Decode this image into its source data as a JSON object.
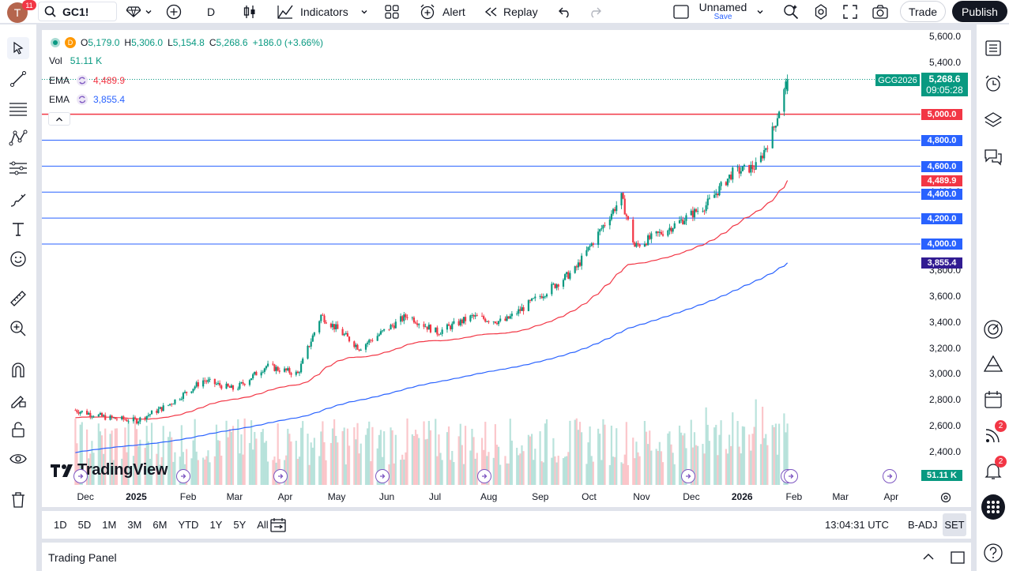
{
  "header": {
    "notification_count": "11",
    "avatar_letter": "T",
    "symbol": "GC1!",
    "interval": "D",
    "indicators_label": "Indicators",
    "alert_label": "Alert",
    "replay_label": "Replay",
    "layout_name": "Unnamed",
    "layout_status": "Save",
    "trade_label": "Trade",
    "publish_label": "Publish"
  },
  "legend": {
    "open_label": "O",
    "open": "5,179.0",
    "high_label": "H",
    "high": "5,306.0",
    "low_label": "L",
    "low": "5,154.8",
    "close_label": "C",
    "close": "5,268.6",
    "change": "+186.0 (+3.66%)",
    "vol_label": "Vol",
    "vol": "51.11 K",
    "ema1_label": "EMA",
    "ema1_value": "4,489.9",
    "ema2_label": "EMA",
    "ema2_value": "3,855.4",
    "badge_d": "D"
  },
  "price_axis": [
    "5,600.0",
    "5,400.0",
    "5,200.0",
    "5,000.0",
    "4,800.0",
    "4,600.0",
    "4,400.0",
    "4,200.0",
    "4,000.0",
    "3,800.0",
    "3,600.0",
    "3,400.0",
    "3,200.0",
    "3,000.0",
    "2,800.0",
    "2,600.0",
    "2,400.0"
  ],
  "price_labels": {
    "symbol_tag": "GCG2026",
    "last_price": "5,268.6",
    "countdown": "09:05:28",
    "h5000": "5,000.0",
    "h4800": "4,800.0",
    "h4600": "4,600.0",
    "ema_fast": "4,489.9",
    "h4400": "4,400.0",
    "h4200": "4,200.0",
    "h4000": "4,000.0",
    "ema_slow": "3,855.4",
    "volume": "51.11 K"
  },
  "time_axis": [
    "Dec",
    "2025",
    "Feb",
    "Mar",
    "Apr",
    "May",
    "Jun",
    "Jul",
    "Aug",
    "Sep",
    "Oct",
    "Nov",
    "Dec",
    "2026",
    "Feb",
    "Mar",
    "Apr"
  ],
  "watermark": "TradingView",
  "bottom": {
    "ranges": [
      "1D",
      "5D",
      "1M",
      "3M",
      "6M",
      "YTD",
      "1Y",
      "5Y",
      "All"
    ],
    "clock": "13:04:31 UTC",
    "adj": "B-ADJ",
    "session": "SET"
  },
  "panel_title": "Trading Panel",
  "right_badges": {
    "ideas": "2",
    "alerts": "2"
  },
  "colors": {
    "up": "#089981",
    "down": "#f23645",
    "ema_fast": "#f23645",
    "ema_slow": "#2962ff",
    "hline_red": "#f23645",
    "hline_blue": "#2962ff",
    "ema_slow_label": "#311b92"
  },
  "chart_data": {
    "type": "candlestick",
    "title": "GC1!",
    "ylim": [
      2300,
      5650
    ],
    "horizontal_levels": [
      5000,
      4800,
      4600,
      4400,
      4200,
      4000
    ],
    "ema_fast_last": 4489.9,
    "ema_slow_last": 3855.4,
    "last": {
      "open": 5179.0,
      "high": 5306.0,
      "low": 5154.8,
      "close": 5268.6,
      "change": 186.0,
      "change_pct": 3.66
    },
    "volume_last": "51.11K",
    "approx_close_path": [
      {
        "date": "2024-11-25",
        "close": 2720
      },
      {
        "date": "2024-12-15",
        "close": 2660
      },
      {
        "date": "2025-01-01",
        "close": 2640
      },
      {
        "date": "2025-01-20",
        "close": 2760
      },
      {
        "date": "2025-02-10",
        "close": 2950
      },
      {
        "date": "2025-03-01",
        "close": 2880
      },
      {
        "date": "2025-03-20",
        "close": 3060
      },
      {
        "date": "2025-04-08",
        "close": 3000
      },
      {
        "date": "2025-04-22",
        "close": 3450
      },
      {
        "date": "2025-05-15",
        "close": 3200
      },
      {
        "date": "2025-06-13",
        "close": 3450
      },
      {
        "date": "2025-07-01",
        "close": 3320
      },
      {
        "date": "2025-07-22",
        "close": 3440
      },
      {
        "date": "2025-08-10",
        "close": 3400
      },
      {
        "date": "2025-09-01",
        "close": 3600
      },
      {
        "date": "2025-09-22",
        "close": 3800
      },
      {
        "date": "2025-10-20",
        "close": 4360
      },
      {
        "date": "2025-10-28",
        "close": 3980
      },
      {
        "date": "2025-11-15",
        "close": 4100
      },
      {
        "date": "2025-12-10",
        "close": 4300
      },
      {
        "date": "2025-12-26",
        "close": 4550
      },
      {
        "date": "2026-01-10",
        "close": 4600
      },
      {
        "date": "2026-01-20",
        "close": 4900
      },
      {
        "date": "2026-01-28",
        "close": 5268.6
      }
    ]
  }
}
